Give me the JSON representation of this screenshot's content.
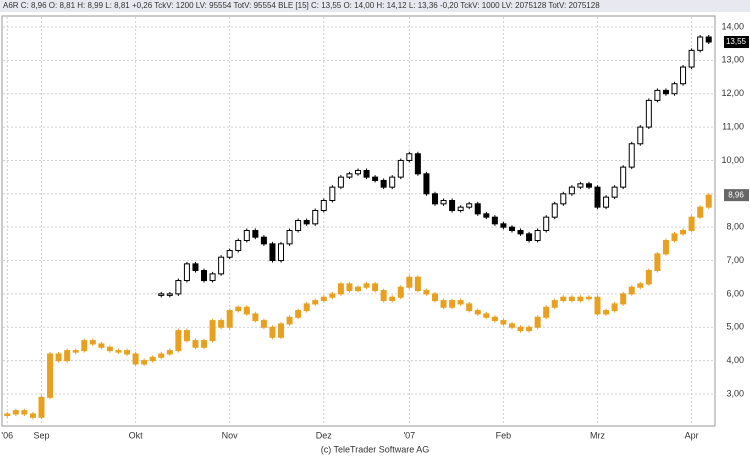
{
  "chart_data": {
    "type": "candlestick",
    "header": "A6R C: 8,96 O: 8,81 H: 8,99 L: 8,81 +0,26 TckV: 1200 LV: 95554 TotV: 95554 BLE [15] C: 13,55 O: 14,00 H: 14,12 L: 13,36 -0,20 TckV: 1000 LV: 2075128 TotV: 2075128",
    "footer": "(c) TeleTrader Software AG",
    "categories": [
      "'06",
      null,
      null,
      null,
      "Sep",
      null,
      null,
      null,
      null,
      null,
      null,
      null,
      null,
      null,
      null,
      "Okt",
      null,
      null,
      null,
      null,
      null,
      null,
      null,
      null,
      null,
      null,
      "Nov",
      null,
      null,
      null,
      null,
      null,
      null,
      null,
      null,
      null,
      null,
      "Dez",
      null,
      null,
      null,
      null,
      null,
      null,
      null,
      null,
      null,
      "'07",
      null,
      null,
      null,
      null,
      null,
      null,
      null,
      null,
      null,
      null,
      "Feb",
      null,
      null,
      null,
      null,
      null,
      null,
      null,
      null,
      null,
      null,
      "Mrz",
      null,
      null,
      null,
      null,
      null,
      null,
      null,
      null,
      null,
      null,
      "Apr",
      null,
      null
    ],
    "series": [
      {
        "name": "BLE",
        "color": "#000000",
        "values": [
          null,
          null,
          null,
          null,
          null,
          null,
          null,
          null,
          null,
          null,
          null,
          null,
          null,
          null,
          null,
          null,
          null,
          null,
          6.0,
          6.0,
          6.4,
          6.9,
          6.7,
          6.4,
          6.6,
          7.1,
          7.3,
          7.6,
          7.9,
          7.7,
          7.5,
          7.0,
          7.5,
          7.9,
          8.2,
          8.1,
          8.5,
          8.8,
          9.2,
          9.5,
          9.6,
          9.7,
          9.5,
          9.4,
          9.2,
          9.5,
          10.0,
          10.2,
          9.6,
          9.0,
          8.7,
          8.8,
          8.5,
          8.6,
          8.7,
          8.4,
          8.3,
          8.1,
          8.0,
          7.9,
          7.8,
          7.6,
          7.9,
          8.3,
          8.7,
          9.0,
          9.2,
          9.3,
          9.2,
          8.6,
          8.9,
          9.2,
          9.8,
          10.5,
          11.0,
          11.8,
          12.1,
          12.0,
          12.3,
          12.8,
          13.3,
          13.7,
          13.55
        ],
        "value_labels": [
          null,
          null,
          null,
          null,
          null,
          null,
          null,
          null,
          null,
          null,
          null,
          null,
          null,
          null,
          null,
          null,
          null,
          null,
          null,
          null,
          null,
          null,
          null,
          null,
          null,
          null,
          null,
          null,
          null,
          null,
          null,
          null,
          null,
          null,
          null,
          null,
          null,
          null,
          null,
          null,
          null,
          null,
          null,
          null,
          null,
          null,
          null,
          null,
          null,
          null,
          null,
          null,
          null,
          null,
          null,
          null,
          null,
          null,
          null,
          null,
          null,
          null,
          null,
          null,
          null,
          null,
          null,
          null,
          null,
          null,
          null,
          null,
          null,
          null,
          null,
          null,
          null,
          null,
          null,
          null,
          null,
          null,
          "13,55"
        ]
      },
      {
        "name": "A6R",
        "color": "#e8a020",
        "values": [
          2.4,
          2.5,
          2.4,
          2.3,
          2.9,
          4.2,
          4.0,
          4.3,
          4.3,
          4.6,
          4.5,
          4.4,
          4.3,
          4.3,
          4.2,
          3.9,
          4.0,
          4.1,
          4.2,
          4.3,
          4.9,
          4.6,
          4.4,
          4.6,
          5.2,
          5.0,
          5.5,
          5.6,
          5.4,
          5.2,
          5.0,
          4.7,
          5.1,
          5.3,
          5.5,
          5.7,
          5.8,
          5.9,
          6.0,
          6.3,
          6.1,
          6.2,
          6.3,
          6.1,
          5.8,
          5.9,
          6.2,
          6.5,
          6.1,
          6.0,
          5.8,
          5.6,
          5.8,
          5.7,
          5.5,
          5.4,
          5.3,
          5.2,
          5.1,
          5.0,
          4.9,
          5.0,
          5.3,
          5.6,
          5.8,
          5.9,
          5.8,
          5.9,
          5.9,
          5.4,
          5.5,
          5.7,
          6.0,
          6.2,
          6.3,
          6.7,
          7.2,
          7.6,
          7.8,
          7.9,
          8.3,
          8.6,
          8.96
        ],
        "value_labels": [
          null,
          null,
          null,
          null,
          null,
          null,
          null,
          null,
          null,
          null,
          null,
          null,
          null,
          null,
          null,
          null,
          null,
          null,
          null,
          null,
          null,
          null,
          null,
          null,
          null,
          null,
          null,
          null,
          null,
          null,
          null,
          null,
          null,
          null,
          null,
          null,
          null,
          null,
          null,
          null,
          null,
          null,
          null,
          null,
          null,
          null,
          null,
          null,
          null,
          null,
          null,
          null,
          null,
          null,
          null,
          null,
          null,
          null,
          null,
          null,
          null,
          null,
          null,
          null,
          null,
          null,
          null,
          null,
          null,
          null,
          null,
          null,
          null,
          null,
          null,
          null,
          null,
          null,
          null,
          null,
          null,
          null,
          "8,96"
        ]
      }
    ],
    "ylim": [
      2.07,
      14.3
    ],
    "yticks": [
      {
        "value": 3,
        "label": "3,00"
      },
      {
        "value": 4,
        "label": "4,00"
      },
      {
        "value": 5,
        "label": "5,00"
      },
      {
        "value": 6,
        "label": "6,00"
      },
      {
        "value": 7,
        "label": "7,00"
      },
      {
        "value": 8,
        "label": "8,00"
      },
      {
        "value": 9,
        "label": "9,00"
      },
      {
        "value": 10,
        "label": "10,00"
      },
      {
        "value": 11,
        "label": "11,00"
      },
      {
        "value": 12,
        "label": "12,00"
      },
      {
        "value": 13,
        "label": "13,00"
      },
      {
        "value": 14,
        "label": "14,00"
      }
    ],
    "grid": true
  }
}
